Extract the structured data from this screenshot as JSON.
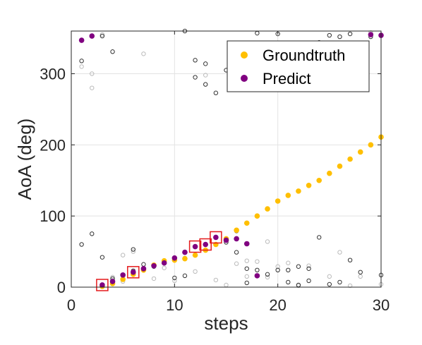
{
  "chart_data": {
    "type": "scatter",
    "xlabel": "steps",
    "ylabel": "AoA (deg)",
    "xlim": [
      0,
      30
    ],
    "ylim": [
      0,
      360
    ],
    "xticks": [
      0,
      10,
      20,
      30
    ],
    "yticks": [
      0,
      100,
      200,
      300
    ],
    "grid": true,
    "legend_position": "top-right",
    "series": [
      {
        "name": "Groundtruth",
        "color": "#ffbf00",
        "marker": "filled-circle",
        "x": [
          3,
          4,
          5,
          6,
          7,
          8,
          9,
          10,
          11,
          12,
          13,
          14,
          15,
          16,
          17,
          18,
          19,
          20,
          21,
          22,
          23,
          24,
          25,
          26,
          27,
          28,
          29,
          30
        ],
        "y": [
          1,
          5,
          11,
          18,
          24,
          31,
          37,
          38,
          40,
          45,
          52,
          60,
          68,
          80,
          90,
          100,
          110,
          121,
          129,
          135,
          143,
          150,
          160,
          170,
          180,
          190,
          200,
          211
        ]
      },
      {
        "name": "Predict",
        "color": "#800080",
        "marker": "filled-circle",
        "x": [
          1,
          2,
          3,
          4,
          5,
          6,
          7,
          8,
          9,
          10,
          11,
          12,
          13,
          14,
          15,
          16,
          17,
          18,
          29,
          30
        ],
        "y": [
          347,
          353,
          3,
          8,
          17,
          21,
          26,
          30,
          34,
          41,
          49,
          57,
          60,
          70,
          66,
          68,
          61,
          16,
          355,
          354
        ]
      }
    ],
    "candidates_dark": {
      "color": "#333333",
      "marker": "open-circle",
      "x": [
        1,
        1,
        2,
        3,
        3,
        4,
        4,
        5,
        6,
        6,
        7,
        8,
        9,
        10,
        11,
        11,
        12,
        12,
        13,
        13,
        14,
        15,
        15,
        16,
        16,
        17,
        17,
        18,
        18,
        19,
        20,
        20,
        21,
        21,
        22,
        22,
        23,
        23,
        24,
        24,
        25,
        25,
        26,
        26,
        27,
        27,
        28,
        28,
        29,
        30
      ],
      "y": [
        318,
        60,
        75,
        353,
        42,
        331,
        12,
        17,
        53,
        23,
        32,
        29,
        36,
        13,
        16,
        360,
        295,
        319,
        314,
        285,
        273,
        305,
        63,
        79,
        49,
        26,
        6,
        357,
        24,
        18,
        24,
        356,
        7,
        24,
        3,
        29,
        9,
        26,
        344,
        70,
        4,
        354,
        7,
        352,
        38,
        356,
        21,
        342,
        352,
        17
      ]
    },
    "candidates_light": {
      "color": "#bbbbbb",
      "marker": "open-circle",
      "x": [
        1,
        2,
        2,
        3,
        3,
        4,
        4,
        5,
        5,
        6,
        7,
        8,
        9,
        10,
        11,
        12,
        13,
        14,
        15,
        16,
        17,
        17,
        18,
        19,
        19,
        20,
        21,
        22,
        23,
        24,
        25,
        26,
        27,
        28,
        29,
        30
      ],
      "y": [
        310,
        300,
        280,
        355,
        2,
        14,
        10,
        45,
        8,
        50,
        328,
        12,
        27,
        9,
        41,
        22,
        298,
        10,
        3,
        33,
        37,
        15,
        36,
        64,
        14,
        29,
        34,
        2,
        30,
        327,
        15,
        49,
        2,
        15,
        358,
        4
      ]
    },
    "highlighted_x": [
      3,
      6,
      12,
      13,
      14
    ]
  }
}
